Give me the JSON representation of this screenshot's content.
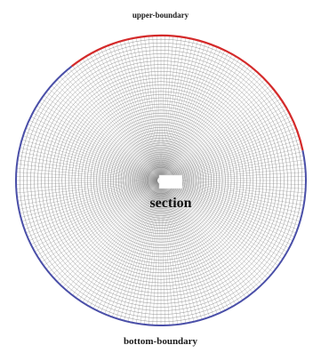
{
  "labels": {
    "upper": "upper-boundary",
    "bottom": "bottom-boundary",
    "section": "section"
  },
  "colors": {
    "upper_boundary": "#d42a2a",
    "bottom_boundary": "#4a4fa8",
    "mesh_line": "#7a7a7a",
    "section_fill": "#ffffff"
  }
}
